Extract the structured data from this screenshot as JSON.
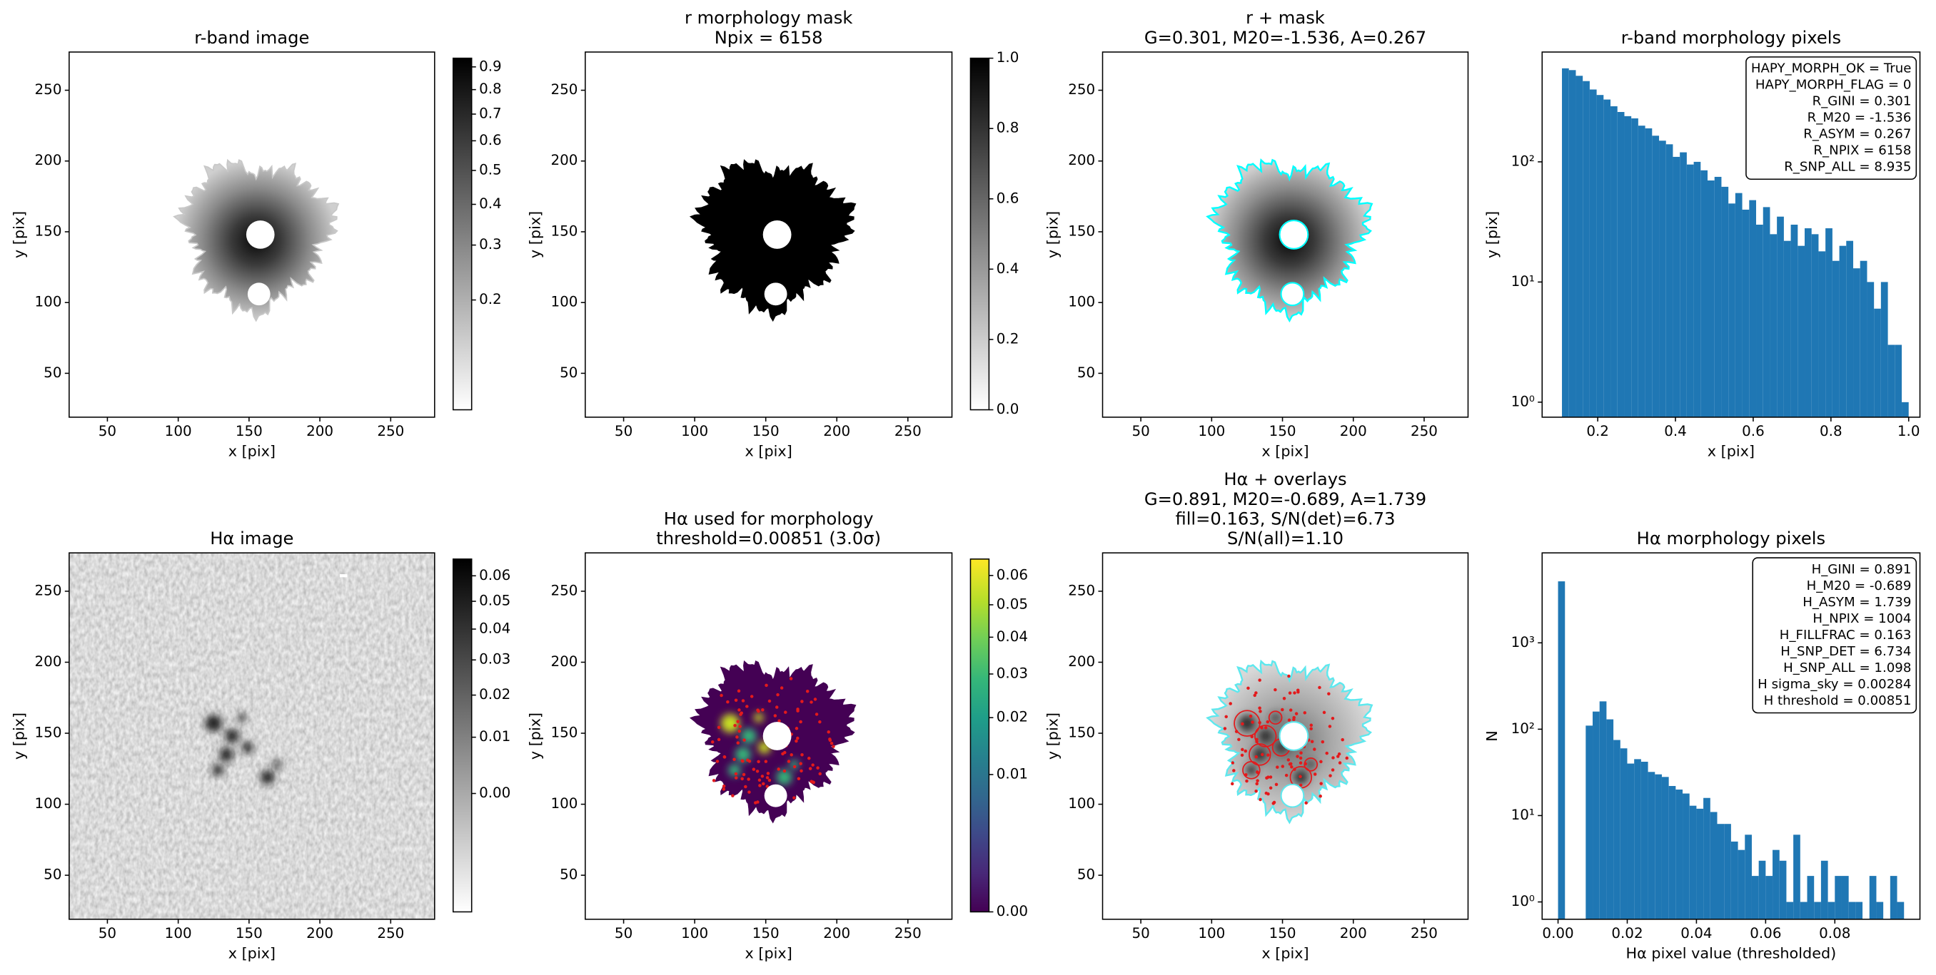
{
  "chart_data": [
    {
      "type": "image",
      "title": [
        "r-band image"
      ],
      "xlabel": "x [pix]",
      "ylabel": "y [pix]",
      "xlim": [
        23,
        281
      ],
      "ylim": [
        19,
        277
      ],
      "xticks": [
        50,
        100,
        150,
        200,
        250
      ],
      "yticks": [
        50,
        100,
        150,
        200,
        250
      ],
      "colorbar": {
        "cmap": "gray_r",
        "stretch": "sqrt",
        "lim": [
          0.12,
          0.94
        ],
        "ticks": [
          0.2,
          0.3,
          0.4,
          0.5,
          0.6,
          0.7,
          0.8,
          0.9
        ]
      }
    },
    {
      "type": "image",
      "title": [
        "r morphology mask",
        "Npix = 6158"
      ],
      "xlabel": "x [pix]",
      "ylabel": "y [pix]",
      "xlim": [
        23,
        281
      ],
      "ylim": [
        19,
        277
      ],
      "xticks": [
        50,
        100,
        150,
        200,
        250
      ],
      "yticks": [
        50,
        100,
        150,
        200,
        250
      ],
      "colorbar": {
        "cmap": "gray_r",
        "stretch": "linear",
        "lim": [
          0,
          1
        ],
        "ticks": [
          {
            "value": 0,
            "label": "0.0"
          },
          0.2,
          0.4,
          0.6,
          0.8,
          {
            "value": 1,
            "label": "1.0"
          }
        ]
      }
    },
    {
      "type": "image",
      "title": [
        "r + mask",
        "G=0.301, M20=-1.536, A=0.267"
      ],
      "xlabel": "x [pix]",
      "ylabel": "y [pix]",
      "xlim": [
        23,
        281
      ],
      "ylim": [
        19,
        277
      ],
      "xticks": [
        50,
        100,
        150,
        200,
        250
      ],
      "yticks": [
        50,
        100,
        150,
        200,
        250
      ]
    },
    {
      "type": "histogram",
      "title": [
        "r-band morphology pixels"
      ],
      "xlabel": "x [pix]",
      "ylabel": "y [pix]",
      "xlim": [
        0.057,
        1.029
      ],
      "ylim": [
        0.75,
        820
      ],
      "yscale": "log",
      "xticks": [
        0.2,
        0.4,
        0.6,
        0.8,
        {
          "value": 1,
          "label": "1.0"
        }
      ],
      "yticks": [
        {
          "value": 1,
          "label": "10⁰"
        },
        {
          "value": 10,
          "label": "10¹"
        },
        {
          "value": 100,
          "label": "10²"
        }
      ],
      "color": "#1f77b4",
      "bins": [
        0.108,
        0.1258,
        0.1437,
        0.1615,
        0.1794,
        0.1972,
        0.215,
        0.2329,
        0.2507,
        0.2686,
        0.2864,
        0.3042,
        0.3221,
        0.3399,
        0.3578,
        0.3756,
        0.3934,
        0.4113,
        0.4291,
        0.447,
        0.4648,
        0.4826,
        0.5005,
        0.5183,
        0.5362,
        0.554,
        0.5718,
        0.5897,
        0.6075,
        0.6254,
        0.6432,
        0.661,
        0.6789,
        0.6967,
        0.7146,
        0.7324,
        0.7502,
        0.7681,
        0.7859,
        0.8038,
        0.8216,
        0.8394,
        0.8573,
        0.8751,
        0.893,
        0.9108,
        0.9286,
        0.9465,
        0.9643,
        0.9822,
        1.0
      ],
      "counts": [
        600,
        580,
        520,
        470,
        400,
        360,
        330,
        290,
        260,
        240,
        230,
        200,
        190,
        165,
        150,
        140,
        110,
        120,
        95,
        100,
        85,
        70,
        75,
        62,
        45,
        55,
        40,
        48,
        30,
        42,
        25,
        35,
        22,
        30,
        20,
        28,
        25,
        18,
        28,
        15,
        20,
        22,
        13,
        15,
        10,
        6,
        10,
        3,
        3,
        1
      ],
      "annotation": [
        "HAPY_MORPH_OK = True",
        "HAPY_MORPH_FLAG = 0",
        "R_GINI = 0.301",
        "R_M20 = -1.536",
        "R_ASYM = 0.267",
        "R_NPIX = 6158",
        "R_SNP_ALL = 8.935"
      ],
      "annotation_loc": "upper right"
    },
    {
      "type": "image",
      "title": [
        "Hα image"
      ],
      "xlabel": "x [pix]",
      "ylabel": "y [pix]",
      "xlim": [
        23,
        281
      ],
      "ylim": [
        19,
        277
      ],
      "xticks": [
        50,
        100,
        150,
        200,
        250
      ],
      "yticks": [
        50,
        100,
        150,
        200,
        250
      ],
      "colorbar": {
        "cmap": "gray_r",
        "stretch": "sqrt",
        "lim": [
          -0.0085,
          0.067
        ],
        "ticks": [
          {
            "value": 0,
            "label": "0.00"
          },
          0.01,
          0.02,
          0.03,
          0.04,
          0.05,
          0.06
        ]
      }
    },
    {
      "type": "image",
      "title": [
        "Hα used for morphology",
        "threshold=0.00851 (3.0σ)"
      ],
      "xlabel": "x [pix]",
      "ylabel": "y [pix]",
      "xlim": [
        23,
        281
      ],
      "ylim": [
        19,
        277
      ],
      "xticks": [
        50,
        100,
        150,
        200,
        250
      ],
      "yticks": [
        50,
        100,
        150,
        200,
        250
      ],
      "colorbar": {
        "cmap": "viridis",
        "stretch": "sqrt",
        "lim": [
          0,
          0.066
        ],
        "ticks": [
          {
            "value": 0,
            "label": "0.00"
          },
          0.01,
          0.02,
          0.03,
          0.04,
          0.05,
          0.06
        ]
      }
    },
    {
      "type": "image",
      "title": [
        "Hα + overlays",
        "G=0.891, M20=-0.689, A=1.739",
        "fill=0.163, S/N(det)=6.73",
        "S/N(all)=1.10"
      ],
      "xlabel": "x [pix]",
      "ylabel": "y [pix]",
      "xlim": [
        23,
        281
      ],
      "ylim": [
        19,
        277
      ],
      "xticks": [
        50,
        100,
        150,
        200,
        250
      ],
      "yticks": [
        50,
        100,
        150,
        200,
        250
      ]
    },
    {
      "type": "histogram",
      "title": [
        "Hα morphology pixels"
      ],
      "xlabel": "Hα pixel value (thresholded)",
      "ylabel": "N",
      "xlim": [
        -0.0046,
        0.1046
      ],
      "ylim": [
        0.63,
        11000
      ],
      "yscale": "log",
      "xticks": [
        {
          "value": 0,
          "label": "0.00"
        },
        0.02,
        0.04,
        0.06,
        0.08
      ],
      "yticks": [
        {
          "value": 1,
          "label": "10⁰"
        },
        {
          "value": 10,
          "label": "10¹"
        },
        {
          "value": 100,
          "label": "10²"
        },
        {
          "value": 1000,
          "label": "10³"
        }
      ],
      "color": "#1f77b4",
      "bins": [
        0,
        0.002,
        0.004,
        0.006,
        0.008,
        0.01,
        0.012,
        0.014,
        0.016,
        0.018,
        0.02,
        0.022,
        0.024,
        0.026,
        0.028,
        0.03,
        0.032,
        0.034,
        0.036,
        0.038,
        0.04,
        0.042,
        0.044,
        0.046,
        0.048,
        0.05,
        0.052,
        0.054,
        0.056,
        0.058,
        0.06,
        0.062,
        0.064,
        0.066,
        0.068,
        0.07,
        0.072,
        0.074,
        0.076,
        0.078,
        0.08,
        0.082,
        0.084,
        0.086,
        0.088,
        0.09,
        0.092,
        0.094,
        0.096,
        0.098,
        0.1
      ],
      "counts": [
        5150,
        0,
        0,
        0,
        110,
        160,
        210,
        130,
        75,
        60,
        40,
        45,
        42,
        32,
        30,
        28,
        22,
        20,
        18,
        13,
        12,
        16,
        11,
        8,
        8,
        5,
        4,
        6,
        2,
        3,
        2,
        4,
        3,
        1,
        6,
        1,
        2,
        1,
        3,
        1,
        2,
        2,
        1,
        1,
        0,
        2,
        1,
        0,
        2,
        1
      ],
      "annotation": [
        "H_GINI = 0.891",
        "H_M20 = -0.689",
        "H_ASYM = 1.739",
        "H_NPIX = 1004",
        "H_FILLFRAC = 0.163",
        "H_SNP_DET = 6.734",
        "H_SNP_ALL = 1.098",
        "H sigma_sky = 0.00284",
        "H threshold = 0.00851"
      ],
      "annotation_loc": "upper right"
    }
  ]
}
